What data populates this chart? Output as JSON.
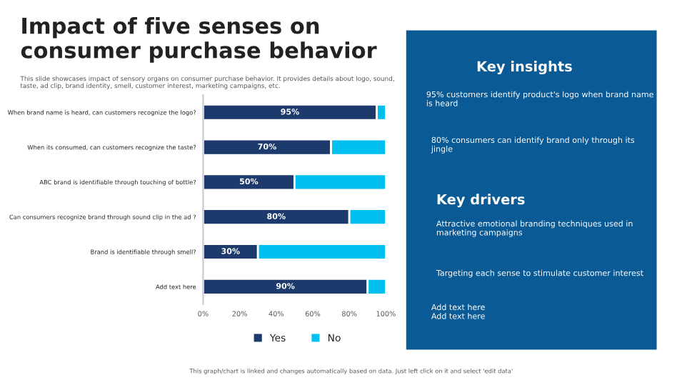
{
  "chart_data": {
    "type": "bar",
    "orientation": "horizontal",
    "stacked": true,
    "title": "Impact of five senses on consumer purchase behavior",
    "subtitle": "This slide showcases impact of sensory organs on consumer purchase behavior. It provides details about logo, sound, taste, ad clip, brand identity, smell, customer interest, marketing campaigns, etc.",
    "categories": [
      "When brand name is heard, can customers recognize the logo?",
      "When its consumed, can customers recognize the taste?",
      "ABC brand is identifiable through touching of bottle?",
      "Can consumers recognize brand through sound clip in the ad ?",
      "Brand is identifiable through smell?",
      "Add text here"
    ],
    "series": [
      {
        "name": "Yes",
        "color": "#1c3a6b",
        "values": [
          95,
          70,
          50,
          80,
          30,
          90
        ],
        "value_labels": [
          "95%",
          "70%",
          "50%",
          "80%",
          "30%",
          "90%"
        ]
      },
      {
        "name": "No",
        "color": "#00c0f0",
        "values": [
          5,
          30,
          50,
          20,
          70,
          10
        ]
      }
    ],
    "xlim": [
      0,
      100
    ],
    "xticks": [
      {
        "value": 0,
        "label": "0%"
      },
      {
        "value": 20,
        "label": "20%"
      },
      {
        "value": 40,
        "label": "40%"
      },
      {
        "value": 60,
        "label": "60%"
      },
      {
        "value": 80,
        "label": "80%"
      },
      {
        "value": 100,
        "label": "100%"
      }
    ],
    "legend": "bottom",
    "annotations": [
      "Key insights",
      "95% customers identify product's logo when brand name is heard",
      "80% consumers can identify brand only through its jingle",
      "Key drivers",
      "Attractive emotional branding techniques used in marketing campaigns",
      "Targeting each sense to stimulate customer interest",
      "Add text here\nAdd text here",
      "This graph/chart is linked and changes automatically based on data. Just left click on it and select 'edit data'"
    ]
  }
}
